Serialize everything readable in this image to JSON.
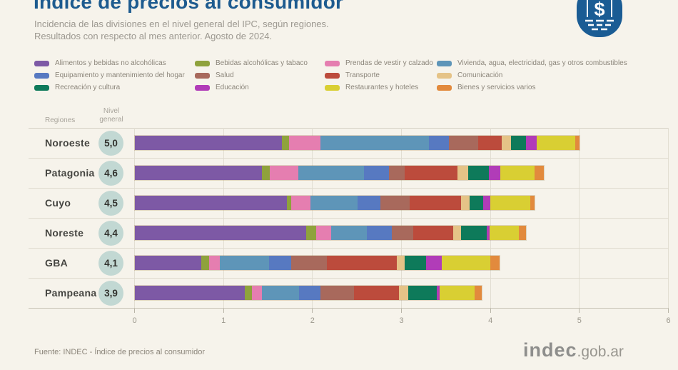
{
  "title": "Índice de precios al consumidor",
  "subtitle_line1": "Incidencia de las divisiones en el nivel general del IPC, según regiones.",
  "subtitle_line2": "Resultados con respecto al mes anterior. Agosto de 2024.",
  "badge": {
    "symbol": "$",
    "color": "#1A5C94"
  },
  "table_headers": {
    "regions": "Regiones",
    "level": "Nivel\ngeneral"
  },
  "chart_data": {
    "type": "bar",
    "stacked": true,
    "orientation": "horizontal",
    "xlim": [
      0,
      6
    ],
    "x_ticks": [
      "0",
      "1",
      "2",
      "3",
      "4",
      "5",
      "6"
    ],
    "grid": true,
    "legend_position": "top",
    "divisions": [
      {
        "name": "Alimentos y bebidas no alcohólicas",
        "color": "#7D59A5"
      },
      {
        "name": "Bebidas alcohólicas y tabaco",
        "color": "#8FA23C"
      },
      {
        "name": "Prendas de vestir y calzado",
        "color": "#E57EB0"
      },
      {
        "name": "Vivienda, agua, electricidad, gas y otros combustibles",
        "color": "#5E95B8"
      },
      {
        "name": "Equipamiento y mantenimiento del hogar",
        "color": "#5779C1"
      },
      {
        "name": "Salud",
        "color": "#A8695C"
      },
      {
        "name": "Transporte",
        "color": "#BC4B3C"
      },
      {
        "name": "Comunicación",
        "color": "#E5C387"
      },
      {
        "name": "Recreación y cultura",
        "color": "#0E7A5A"
      },
      {
        "name": "Educación",
        "color": "#B13CB8"
      },
      {
        "name": "Restaurantes y hoteles",
        "color": "#D9CF33"
      },
      {
        "name": "Bienes y servicios varios",
        "color": "#E28A3D"
      }
    ],
    "regions": [
      {
        "name": "Noroeste",
        "nivel_general": "5,0",
        "values": [
          1.66,
          0.08,
          0.35,
          1.22,
          0.22,
          0.33,
          0.27,
          0.1,
          0.17,
          0.12,
          0.43,
          0.05
        ]
      },
      {
        "name": "Patagonia",
        "nivel_general": "4,6",
        "values": [
          1.43,
          0.09,
          0.32,
          0.74,
          0.28,
          0.18,
          0.59,
          0.12,
          0.23,
          0.13,
          0.39,
          0.1
        ]
      },
      {
        "name": "Cuyo",
        "nivel_general": "4,5",
        "values": [
          1.71,
          0.05,
          0.22,
          0.53,
          0.25,
          0.33,
          0.58,
          0.1,
          0.15,
          0.08,
          0.45,
          0.05
        ]
      },
      {
        "name": "Noreste",
        "nivel_general": "4,4",
        "values": [
          1.93,
          0.11,
          0.17,
          0.4,
          0.28,
          0.24,
          0.45,
          0.09,
          0.29,
          0.03,
          0.33,
          0.08
        ]
      },
      {
        "name": "GBA",
        "nivel_general": "4,1",
        "values": [
          0.75,
          0.09,
          0.12,
          0.55,
          0.25,
          0.4,
          0.79,
          0.09,
          0.24,
          0.17,
          0.55,
          0.1
        ]
      },
      {
        "name": "Pampeana",
        "nivel_general": "3,9",
        "values": [
          1.24,
          0.08,
          0.11,
          0.42,
          0.24,
          0.38,
          0.5,
          0.11,
          0.32,
          0.03,
          0.39,
          0.08
        ]
      }
    ]
  },
  "footer": {
    "source": "Fuente: INDEC - Índice de precios al consumidor",
    "logo_main": "indec",
    "logo_suffix": ".gob.ar"
  }
}
